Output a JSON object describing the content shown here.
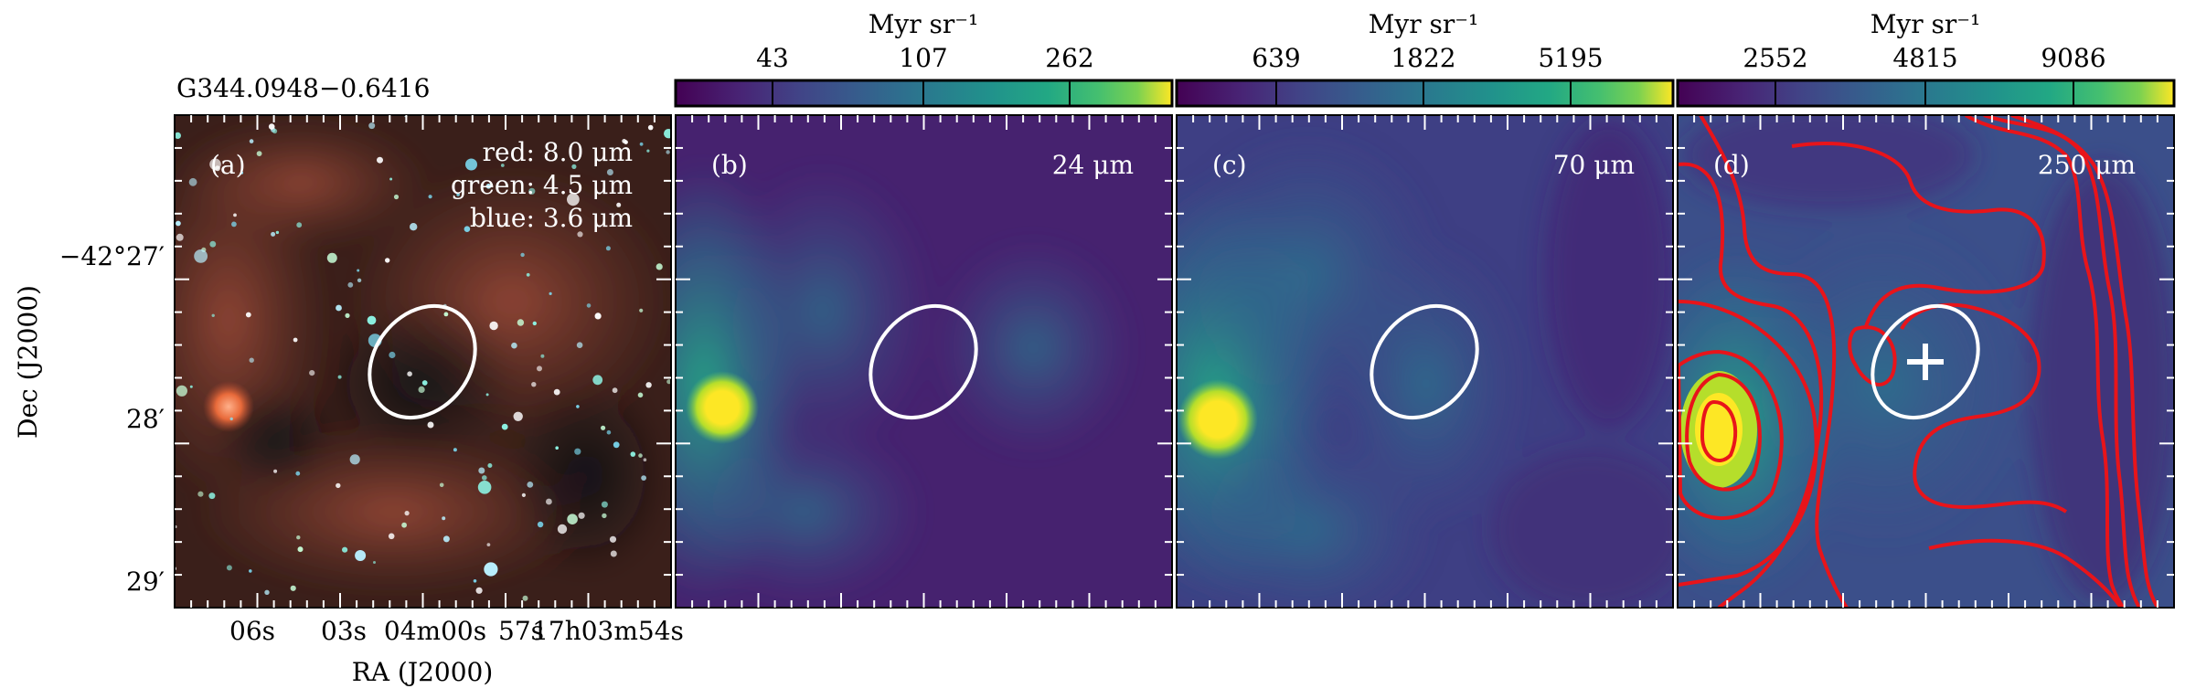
{
  "source_name": "G344.0948−0.6416",
  "axes": {
    "xlabel": "RA (J2000)",
    "ylabel": "Dec (J2000)",
    "xticks": [
      "06s",
      "03s",
      "04m00s",
      "57s",
      "17h03m54s"
    ],
    "yticks": [
      "−42°27′",
      "28′",
      "29′"
    ]
  },
  "panels": [
    {
      "id": "a",
      "label": "(a)",
      "legend": [
        "red: 8.0 μm",
        "green: 4.5 μm",
        "blue: 3.6 μm"
      ],
      "image": "three-color composite"
    },
    {
      "id": "b",
      "label": "(b)",
      "band": "24 μm",
      "colorbar": {
        "unit": "Myr sr⁻¹",
        "ticks": [
          "43",
          "107",
          "262"
        ],
        "colormap": "viridis"
      }
    },
    {
      "id": "c",
      "label": "(c)",
      "band": "70 μm",
      "colorbar": {
        "unit": "Myr sr⁻¹",
        "ticks": [
          "639",
          "1822",
          "5195"
        ],
        "colormap": "viridis"
      }
    },
    {
      "id": "d",
      "label": "(d)",
      "band": "250 μm",
      "colorbar": {
        "unit": "Myr sr⁻¹",
        "ticks": [
          "2552",
          "4815",
          "9086"
        ],
        "colormap": "viridis"
      },
      "overlays": [
        "red contours",
        "white plus marker"
      ]
    }
  ],
  "colors": {
    "ellipse": "#ffffff",
    "contour": "#e8141a",
    "viridis_dark": "#440154",
    "viridis_mid": "#21918c",
    "viridis_bright": "#fde725"
  }
}
